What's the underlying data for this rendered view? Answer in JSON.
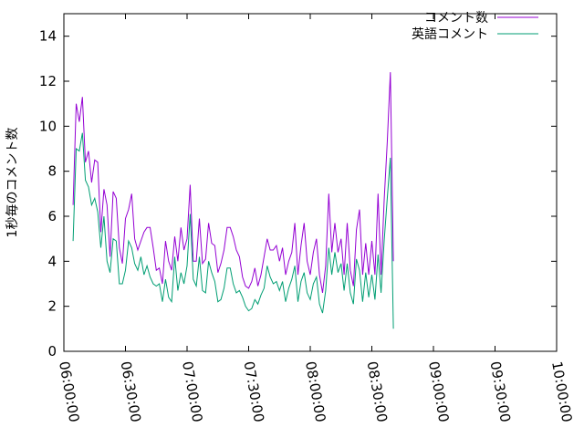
{
  "chart_data": {
    "type": "line",
    "title": "",
    "xlabel": "",
    "ylabel": "1秒毎のコメント数",
    "xlim": [
      "06:00:00",
      "10:00:00"
    ],
    "ylim": [
      0,
      15
    ],
    "grid": false,
    "legend_position": "top-right",
    "x_ticks": [
      "06:00:00",
      "06:30:00",
      "07:00:00",
      "07:30:00",
      "08:00:00",
      "08:30:00",
      "09:00:00",
      "09:30:00",
      "10:00:00"
    ],
    "y_ticks": [
      0,
      2,
      4,
      6,
      8,
      10,
      12,
      14
    ],
    "sample_interval_minutes": 1.5,
    "series": [
      {
        "name": "コメント数",
        "color": "#9400d3",
        "values": [
          6.5,
          11.0,
          10.2,
          11.3,
          8.4,
          8.9,
          7.5,
          8.5,
          8.4,
          5.3,
          7.2,
          6.5,
          4.2,
          7.1,
          6.8,
          4.6,
          3.9,
          5.9,
          6.3,
          7.0,
          5.0,
          4.5,
          4.9,
          5.3,
          5.5,
          5.5,
          4.6,
          3.6,
          3.7,
          3.0,
          4.9,
          4.0,
          3.6,
          5.1,
          4.0,
          5.5,
          4.5,
          5.0,
          7.4,
          4.0,
          4.0,
          5.9,
          3.9,
          4.1,
          5.7,
          4.8,
          4.7,
          3.5,
          3.9,
          4.5,
          5.5,
          5.5,
          5.1,
          4.5,
          4.2,
          3.3,
          2.9,
          2.8,
          3.1,
          3.7,
          2.9,
          3.4,
          4.2,
          5.0,
          4.5,
          4.5,
          4.7,
          4.0,
          4.6,
          3.4,
          4.0,
          4.4,
          5.7,
          3.4,
          4.7,
          5.7,
          4.0,
          3.4,
          4.4,
          5.0,
          3.4,
          2.6,
          3.8,
          7.0,
          4.4,
          5.7,
          4.4,
          5.0,
          3.4,
          5.7,
          3.6,
          2.9,
          5.4,
          6.3,
          3.4,
          4.8,
          3.4,
          4.9,
          3.4,
          7.0,
          3.4,
          6.7,
          9.3,
          12.4,
          4.0
        ]
      },
      {
        "name": "英語コメント",
        "color": "#009e73",
        "values": [
          4.9,
          9.0,
          8.9,
          9.7,
          7.6,
          7.3,
          6.5,
          6.8,
          6.2,
          4.6,
          6.0,
          4.0,
          3.5,
          5.0,
          4.9,
          3.0,
          3.0,
          3.6,
          4.9,
          4.6,
          3.9,
          3.6,
          4.2,
          3.4,
          3.8,
          3.3,
          3.0,
          2.9,
          3.0,
          2.2,
          3.2,
          2.4,
          2.2,
          4.2,
          2.7,
          3.5,
          3.0,
          3.8,
          6.1,
          3.2,
          2.9,
          4.2,
          2.7,
          2.6,
          4.0,
          3.5,
          3.1,
          2.2,
          2.3,
          2.8,
          3.7,
          3.7,
          3.0,
          2.6,
          2.7,
          2.4,
          2.0,
          1.8,
          1.9,
          2.3,
          2.1,
          2.5,
          2.8,
          3.8,
          3.3,
          3.0,
          3.1,
          2.7,
          3.1,
          2.2,
          2.8,
          3.2,
          3.8,
          2.2,
          3.1,
          3.5,
          2.6,
          2.3,
          3.0,
          3.3,
          2.1,
          1.7,
          2.7,
          4.6,
          3.4,
          4.4,
          3.5,
          3.9,
          2.7,
          3.9,
          2.6,
          2.1,
          4.1,
          3.6,
          2.2,
          3.5,
          2.4,
          3.4,
          2.3,
          4.3,
          2.6,
          4.9,
          6.8,
          8.6,
          1.0
        ]
      }
    ]
  }
}
